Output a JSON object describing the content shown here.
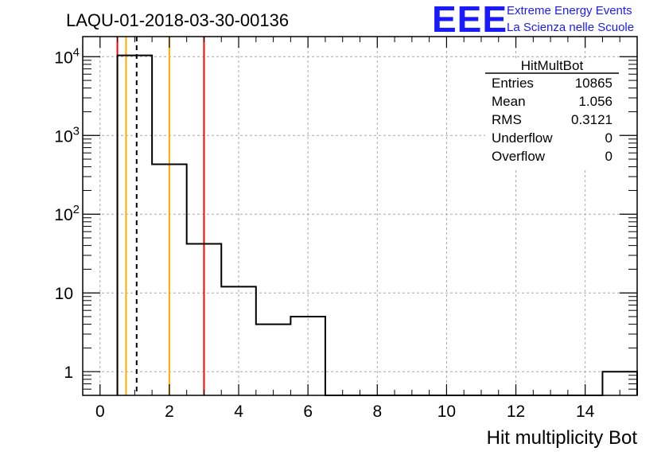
{
  "header": {
    "run_title": "LAQU-01-2018-03-30-00136",
    "logo_text": "EEE",
    "logo_line1": "Extreme Energy Events",
    "logo_line2": "La Scienza nelle Scuole"
  },
  "stats_box": {
    "title": "HitMultBot",
    "rows": [
      {
        "label": "Entries",
        "value": "10865"
      },
      {
        "label": "Mean",
        "value": "1.056"
      },
      {
        "label": "RMS",
        "value": "0.3121"
      },
      {
        "label": "Underflow",
        "value": "0"
      },
      {
        "label": "Overflow",
        "value": "0"
      }
    ]
  },
  "chart_data": {
    "type": "histogram",
    "title": "LAQU-01-2018-03-30-00136",
    "xlabel": "Hit multiplicity Bot",
    "ylabel": "",
    "y_scale": "log",
    "xlim": [
      -0.5,
      15.5
    ],
    "ylim": [
      0.5,
      18000
    ],
    "grid": true,
    "bin_edges": [
      0.5,
      1.5,
      2.5,
      3.5,
      4.5,
      5.5,
      6.5,
      7.5,
      8.5,
      9.5,
      10.5,
      11.5,
      12.5,
      13.5,
      14.5,
      15.5
    ],
    "values": [
      10400,
      430,
      42,
      12,
      4,
      5,
      0,
      0,
      0,
      0,
      0,
      0,
      0,
      0,
      1
    ],
    "x_ticks": [
      {
        "value": 0,
        "label": "0"
      },
      {
        "value": 2,
        "label": "2"
      },
      {
        "value": 4,
        "label": "4"
      },
      {
        "value": 6,
        "label": "6"
      },
      {
        "value": 8,
        "label": "8"
      },
      {
        "value": 10,
        "label": "10"
      },
      {
        "value": 12,
        "label": "12"
      },
      {
        "value": 14,
        "label": "14"
      }
    ],
    "y_ticks": [
      {
        "value": 1,
        "base": "1",
        "exp": ""
      },
      {
        "value": 10,
        "base": "10",
        "exp": ""
      },
      {
        "value": 100,
        "base": "10",
        "exp": "2"
      },
      {
        "value": 1000,
        "base": "10",
        "exp": "3"
      },
      {
        "value": 10000,
        "base": "10",
        "exp": "4"
      }
    ],
    "vertical_markers": [
      {
        "x": 0.5,
        "color": "#ff0000",
        "style": "solid"
      },
      {
        "x": 0.75,
        "color": "#ffaa00",
        "style": "solid"
      },
      {
        "x": 1.056,
        "color": "#000000",
        "style": "dashed"
      },
      {
        "x": 2.0,
        "color": "#ffaa00",
        "style": "solid"
      },
      {
        "x": 3.0,
        "color": "#ff0000",
        "style": "solid"
      }
    ]
  }
}
